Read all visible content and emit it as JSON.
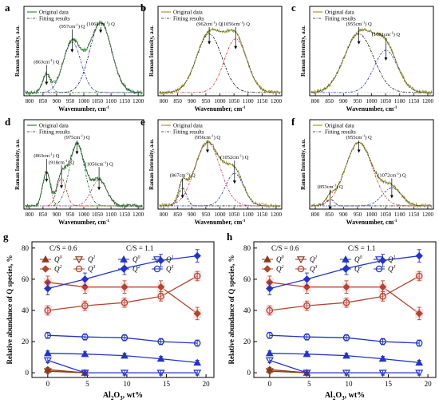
{
  "chart_data": [
    {
      "panel": "a",
      "type": "line",
      "xlabel": "Wavenumber, cm",
      "ylabel": "Raman Intensity, a.u.",
      "xlim": [
        780,
        1220
      ],
      "xticks": [
        800,
        850,
        900,
        950,
        1000,
        1050,
        1100,
        1150,
        1200
      ],
      "legend": [
        "Original data",
        "Fitting results"
      ],
      "peaks": [
        {
          "center": 863,
          "height": 0.22,
          "width": 15,
          "label": "(863cm",
          "species": "Q",
          "color": "#2e7d32"
        },
        {
          "center": 957,
          "height": 0.62,
          "width": 33,
          "label": "(957cm",
          "species": "Q",
          "color": "#3949ab"
        },
        {
          "center": 1062,
          "height": 0.86,
          "width": 40,
          "label": "(1062cm",
          "species": "Q",
          "color": "#1f2d6e"
        }
      ],
      "curve_color": "#3a8a3a"
    },
    {
      "panel": "b",
      "type": "line",
      "xlabel": "Wavenumber, cm",
      "ylabel": "Raman Intensity, a.u.",
      "xlim": [
        780,
        1220
      ],
      "xticks": [
        800,
        850,
        900,
        950,
        1000,
        1050,
        1100,
        1150,
        1200
      ],
      "legend": [
        "Original data",
        "Fitting results"
      ],
      "peaks": [
        {
          "center": 962,
          "height": 0.72,
          "width": 45,
          "label": "(962cm",
          "species": "Q",
          "color": "#222222"
        },
        {
          "center": 1056,
          "height": 0.66,
          "width": 40,
          "label": "(1056cm",
          "species": "Q",
          "color": "#d04040"
        }
      ],
      "curve_color": "#9a9a30"
    },
    {
      "panel": "c",
      "type": "line",
      "xlabel": "Wavenumber, cm",
      "ylabel": "Raman Intensity, a.u.",
      "xlim": [
        780,
        1220
      ],
      "xticks": [
        800,
        850,
        900,
        950,
        1000,
        1050,
        1100,
        1150,
        1200
      ],
      "legend": [
        "Original data",
        "Fitting results"
      ],
      "peaks": [
        {
          "center": 955,
          "height": 0.72,
          "width": 52,
          "label": "(955cm",
          "species": "Q",
          "color": "#222222"
        },
        {
          "center": 1051,
          "height": 0.52,
          "width": 42,
          "label": "(1051cm",
          "species": "Q",
          "color": "#3949ab"
        }
      ],
      "curve_color": "#9a9a30"
    },
    {
      "panel": "d",
      "type": "line",
      "xlabel": "Wavenumber, cm",
      "ylabel": "Raman Intensity, a.u.",
      "xlim": [
        780,
        1220
      ],
      "xticks": [
        800,
        850,
        900,
        950,
        1000,
        1050,
        1100,
        1150,
        1200
      ],
      "legend": [
        "Original data",
        "Fitting results"
      ],
      "peaks": [
        {
          "center": 863,
          "height": 0.42,
          "width": 14,
          "label": "(863cm",
          "species": "Q",
          "color": "#1e7b2e"
        },
        {
          "center": 918,
          "height": 0.34,
          "width": 17,
          "label": "(918cm",
          "species": "Q",
          "color": "#d04040"
        },
        {
          "center": 975,
          "height": 0.76,
          "width": 28,
          "label": "(975cm",
          "species": "Q",
          "color": "#1e7b2e"
        },
        {
          "center": 1056,
          "height": 0.32,
          "width": 28,
          "label": "(1056cm",
          "species": "Q",
          "color": "#c040a0"
        }
      ],
      "curve_color": "#2e7d32"
    },
    {
      "panel": "e",
      "type": "line",
      "xlabel": "Wavenumber, cm",
      "ylabel": "Raman Intensity, a.u.",
      "xlim": [
        780,
        1220
      ],
      "xticks": [
        800,
        850,
        900,
        950,
        1000,
        1050,
        1100,
        1150,
        1200
      ],
      "legend": [
        "Original data",
        "Fitting results"
      ],
      "peaks": [
        {
          "center": 867,
          "height": 0.22,
          "width": 14,
          "label": "(867cm",
          "species": "Q",
          "color": "#222222"
        },
        {
          "center": 956,
          "height": 0.78,
          "width": 45,
          "label": "(956cm",
          "species": "Q",
          "color": "#d04080"
        },
        {
          "center": 1052,
          "height": 0.4,
          "width": 32,
          "label": "(1052cm",
          "species": "Q",
          "color": "#3949ab"
        }
      ],
      "curve_color": "#9a9a30"
    },
    {
      "panel": "f",
      "type": "line",
      "xlabel": "Wavenumber, cm",
      "ylabel": "Raman Intensity, a.u.",
      "xlim": [
        780,
        1220
      ],
      "xticks": [
        800,
        850,
        900,
        950,
        1000,
        1050,
        1100,
        1150,
        1200
      ],
      "legend": [
        "Original data",
        "Fitting results"
      ],
      "peaks": [
        {
          "center": 853,
          "height": 0.08,
          "width": 14,
          "label": "(853cm",
          "species": "Q",
          "color": "#222222"
        },
        {
          "center": 955,
          "height": 0.78,
          "width": 48,
          "label": "(955cm",
          "species": "Q",
          "color": "#d04040"
        },
        {
          "center": 1072,
          "height": 0.22,
          "width": 34,
          "label": "(1072cm",
          "species": "Q",
          "color": "#3949ab"
        }
      ],
      "curve_color": "#9a9a30"
    },
    {
      "panel": "g",
      "type": "line",
      "xlabel": "Al",
      "xlabel_sub": "2",
      "xlabel_mid": "O",
      "xlabel_sub2": "3",
      "xlabel_tail": ", wt%",
      "ylabel": "Relative abundance of Q species, %",
      "xlim": [
        -2,
        21
      ],
      "ylim": [
        -3,
        84
      ],
      "xticks": [
        0,
        5,
        10,
        15,
        20
      ],
      "yticks": [
        0,
        20,
        40,
        60,
        80
      ],
      "groups": [
        "C/S = 0.6",
        "C/S = 1.1"
      ],
      "x": [
        0,
        4.7,
        9.7,
        14.3,
        18.9
      ],
      "series": [
        {
          "name": "Q",
          "sup": "0",
          "group": 0,
          "color": "#8b3a1a",
          "marker": "tri-up",
          "values": [
            2,
            0,
            null,
            null,
            null
          ],
          "err": 1.5
        },
        {
          "name": "Q",
          "sup": "1",
          "group": 0,
          "color": "#8b3a1a",
          "marker": "tri-down",
          "values": [
            1,
            0,
            null,
            null,
            null
          ],
          "err": 1.5
        },
        {
          "name": "Q",
          "sup": "2",
          "group": 0,
          "color": "#b5452a",
          "marker": "diamond",
          "values": [
            58,
            55,
            55,
            55,
            38
          ],
          "err": 4
        },
        {
          "name": "Q",
          "sup": "3",
          "group": 0,
          "color": "#b5452a",
          "marker": "circle",
          "values": [
            40,
            43,
            45,
            49,
            62
          ],
          "err": 3
        },
        {
          "name": "Q",
          "sup": "0",
          "group": 1,
          "color": "#2233cc",
          "marker": "tri-up",
          "values": [
            12.5,
            12,
            11,
            9,
            6.5
          ],
          "err": 1.5
        },
        {
          "name": "Q",
          "sup": "1",
          "group": 1,
          "color": "#2233cc",
          "marker": "tri-down",
          "values": [
            8,
            0,
            0,
            0,
            0
          ],
          "err": 1.5
        },
        {
          "name": "Q",
          "sup": "2",
          "group": 1,
          "color": "#2233cc",
          "marker": "diamond",
          "values": [
            54,
            60,
            67,
            72,
            75
          ],
          "err": 4
        },
        {
          "name": "Q",
          "sup": "3",
          "group": 1,
          "color": "#2233cc",
          "marker": "circle",
          "values": [
            24,
            23,
            22.5,
            20,
            19
          ],
          "err": 2
        }
      ]
    },
    {
      "panel": "h",
      "type": "line",
      "xlabel": "Al",
      "xlabel_sub": "2",
      "xlabel_mid": "O",
      "xlabel_sub2": "3",
      "xlabel_tail": ", wt%",
      "ylabel": "Relative abundance of Q species, %",
      "xlim": [
        -2,
        21
      ],
      "ylim": [
        -3,
        84
      ],
      "xticks": [
        0,
        5,
        10,
        15,
        20
      ],
      "yticks": [
        0,
        20,
        40,
        60,
        80
      ],
      "groups": [
        "C/S = 0.6",
        "C/S = 1.1"
      ],
      "x": [
        0,
        4.7,
        9.7,
        14.3,
        18.9
      ],
      "series": [
        {
          "name": "Q",
          "sup": "0",
          "group": 0,
          "color": "#8b3a1a",
          "marker": "tri-up",
          "values": [
            2,
            0,
            null,
            null,
            null
          ],
          "err": 1.5
        },
        {
          "name": "Q",
          "sup": "1",
          "group": 0,
          "color": "#8b3a1a",
          "marker": "tri-down",
          "values": [
            1,
            0,
            null,
            null,
            null
          ],
          "err": 1.5
        },
        {
          "name": "Q",
          "sup": "2",
          "group": 0,
          "color": "#b5452a",
          "marker": "diamond",
          "values": [
            58,
            55,
            55,
            55,
            38
          ],
          "err": 4
        },
        {
          "name": "Q",
          "sup": "3",
          "group": 0,
          "color": "#b5452a",
          "marker": "circle",
          "values": [
            40,
            43,
            45,
            49,
            62
          ],
          "err": 3
        },
        {
          "name": "Q",
          "sup": "0",
          "group": 1,
          "color": "#2233cc",
          "marker": "tri-up",
          "values": [
            12.5,
            12,
            11,
            9,
            6.5
          ],
          "err": 1.5
        },
        {
          "name": "Q",
          "sup": "1",
          "group": 1,
          "color": "#2233cc",
          "marker": "tri-down",
          "values": [
            8,
            0,
            0,
            0,
            0
          ],
          "err": 1.5
        },
        {
          "name": "Q",
          "sup": "2",
          "group": 1,
          "color": "#2233cc",
          "marker": "diamond",
          "values": [
            54,
            60,
            67,
            72,
            75
          ],
          "err": 4
        },
        {
          "name": "Q",
          "sup": "3",
          "group": 1,
          "color": "#2233cc",
          "marker": "circle",
          "values": [
            24,
            23,
            22.5,
            20,
            19
          ],
          "err": 2
        }
      ]
    }
  ]
}
